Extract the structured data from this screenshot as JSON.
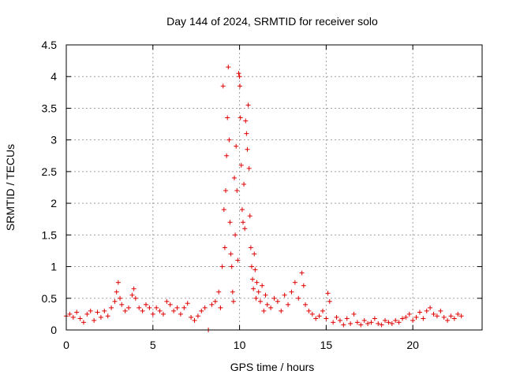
{
  "chart_data": {
    "type": "scatter",
    "title": "Day 144 of 2024, SRMTID for receiver solo",
    "xlabel": "GPS time / hours",
    "ylabel": "SRMTID / TECUs",
    "xlim": [
      0,
      24
    ],
    "ylim": [
      0,
      4.5
    ],
    "xticks": [
      0,
      5,
      10,
      15,
      20
    ],
    "yticks": [
      0,
      0.5,
      1,
      1.5,
      2,
      2.5,
      3,
      3.5,
      4,
      4.5
    ],
    "xtick_labels": [
      "0",
      "5",
      "10",
      "15",
      "20"
    ],
    "ytick_labels": [
      "0",
      "0.5",
      "1",
      "1.5",
      "2",
      "2.5",
      "3",
      "3.5",
      "4",
      "4.5"
    ],
    "grid": true,
    "marker": "+",
    "color": "#e00000",
    "series": [
      {
        "name": "SRMTID",
        "x": [
          0.0,
          0.2,
          0.4,
          0.6,
          0.8,
          1.0,
          1.2,
          1.4,
          1.6,
          1.8,
          2.0,
          2.2,
          2.4,
          2.6,
          2.8,
          2.9,
          3.0,
          3.1,
          3.2,
          3.4,
          3.6,
          3.8,
          3.9,
          4.0,
          4.2,
          4.4,
          4.6,
          4.8,
          5.0,
          5.2,
          5.4,
          5.6,
          5.8,
          6.0,
          6.2,
          6.4,
          6.6,
          6.8,
          7.0,
          7.2,
          7.4,
          7.6,
          7.8,
          8.0,
          8.2,
          8.4,
          8.6,
          8.8,
          8.9,
          9.0,
          9.05,
          9.1,
          9.15,
          9.2,
          9.25,
          9.3,
          9.35,
          9.4,
          9.45,
          9.5,
          9.55,
          9.6,
          9.65,
          9.7,
          9.75,
          9.8,
          9.85,
          9.9,
          9.95,
          10.0,
          10.02,
          10.05,
          10.1,
          10.15,
          10.2,
          10.25,
          10.3,
          10.35,
          10.4,
          10.45,
          10.5,
          10.55,
          10.6,
          10.65,
          10.7,
          10.75,
          10.8,
          10.85,
          10.9,
          10.95,
          11.0,
          11.1,
          11.2,
          11.3,
          11.4,
          11.5,
          11.6,
          11.8,
          12.0,
          12.2,
          12.4,
          12.6,
          12.8,
          13.0,
          13.2,
          13.4,
          13.6,
          13.7,
          13.8,
          14.0,
          14.2,
          14.4,
          14.6,
          14.8,
          15.0,
          15.1,
          15.2,
          15.4,
          15.6,
          15.8,
          16.0,
          16.2,
          16.4,
          16.6,
          16.8,
          17.0,
          17.2,
          17.4,
          17.6,
          17.8,
          18.0,
          18.2,
          18.4,
          18.6,
          18.8,
          19.0,
          19.2,
          19.4,
          19.6,
          19.8,
          20.0,
          20.2,
          20.4,
          20.6,
          20.8,
          21.0,
          21.2,
          21.4,
          21.6,
          21.8,
          22.0,
          22.2,
          22.4,
          22.6,
          22.8
        ],
        "y": [
          0.22,
          0.25,
          0.2,
          0.28,
          0.18,
          0.12,
          0.25,
          0.3,
          0.15,
          0.28,
          0.2,
          0.3,
          0.22,
          0.35,
          0.45,
          0.6,
          0.75,
          0.5,
          0.4,
          0.3,
          0.35,
          0.55,
          0.65,
          0.5,
          0.35,
          0.3,
          0.4,
          0.35,
          0.25,
          0.35,
          0.3,
          0.25,
          0.45,
          0.4,
          0.3,
          0.35,
          0.25,
          0.35,
          0.42,
          0.2,
          0.15,
          0.22,
          0.3,
          0.35,
          0.0,
          0.4,
          0.45,
          0.6,
          0.35,
          1.0,
          3.85,
          1.9,
          1.3,
          2.2,
          2.75,
          3.35,
          4.15,
          3.0,
          1.7,
          1.2,
          1.0,
          0.6,
          0.45,
          2.4,
          1.5,
          2.9,
          2.2,
          1.1,
          4.05,
          4.0,
          3.85,
          3.35,
          2.6,
          1.9,
          1.7,
          2.3,
          1.6,
          3.3,
          3.1,
          2.85,
          3.55,
          2.55,
          1.8,
          1.3,
          1.0,
          0.8,
          0.65,
          1.2,
          0.95,
          0.5,
          0.75,
          0.6,
          0.45,
          0.7,
          0.3,
          0.55,
          0.4,
          0.35,
          0.5,
          0.45,
          0.3,
          0.55,
          0.4,
          0.6,
          0.75,
          0.5,
          0.9,
          0.7,
          0.4,
          0.3,
          0.25,
          0.18,
          0.22,
          0.3,
          0.18,
          0.58,
          0.45,
          0.12,
          0.2,
          0.15,
          0.08,
          0.18,
          0.1,
          0.25,
          0.12,
          0.08,
          0.15,
          0.1,
          0.12,
          0.18,
          0.1,
          0.08,
          0.15,
          0.12,
          0.1,
          0.15,
          0.12,
          0.18,
          0.2,
          0.25,
          0.15,
          0.2,
          0.28,
          0.18,
          0.3,
          0.35,
          0.25,
          0.22,
          0.3,
          0.2,
          0.15,
          0.22,
          0.18,
          0.25,
          0.22
        ]
      }
    ]
  }
}
